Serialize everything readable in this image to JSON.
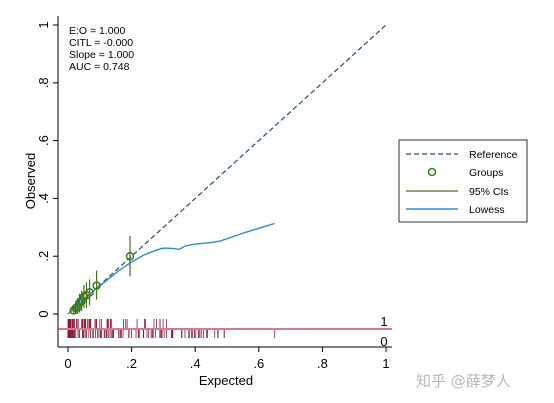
{
  "chart_data": {
    "type": "scatter",
    "title": "",
    "xlabel": "Expected",
    "ylabel": "Observed",
    "xlim": [
      0,
      1
    ],
    "ylim": [
      0,
      1
    ],
    "x_ticks": [
      {
        "value": 0,
        "label": "0"
      },
      {
        "value": 0.2,
        "label": ".2"
      },
      {
        "value": 0.4,
        "label": ".4"
      },
      {
        "value": 0.6,
        "label": ".6"
      },
      {
        "value": 0.8,
        "label": ".8"
      },
      {
        "value": 1,
        "label": "1"
      }
    ],
    "y_ticks": [
      {
        "value": 0,
        "label": "0"
      },
      {
        "value": 0.2,
        "label": ".2"
      },
      {
        "value": 0.4,
        "label": ".4"
      },
      {
        "value": 0.6,
        "label": ".6"
      },
      {
        "value": 0.8,
        "label": ".8"
      },
      {
        "value": 1,
        "label": "1"
      }
    ],
    "grid": false,
    "annotations": [
      "E:O = 1.000",
      "CITL = -0.000",
      "Slope = 1.000",
      "AUC = 0.748"
    ],
    "legend": {
      "position": "right",
      "entries": [
        "Reference",
        "Groups",
        "95% CIs",
        "Lowess"
      ]
    },
    "reference_line": {
      "x": [
        0,
        1
      ],
      "y": [
        0,
        1
      ]
    },
    "groups": [
      {
        "x": 0.018,
        "y": 0.012,
        "ci": [
          0.0,
          0.03
        ]
      },
      {
        "x": 0.024,
        "y": 0.02,
        "ci": [
          0.0,
          0.045
        ]
      },
      {
        "x": 0.03,
        "y": 0.024,
        "ci": [
          0.0,
          0.055
        ]
      },
      {
        "x": 0.036,
        "y": 0.038,
        "ci": [
          0.005,
          0.07
        ]
      },
      {
        "x": 0.043,
        "y": 0.045,
        "ci": [
          0.01,
          0.08
        ]
      },
      {
        "x": 0.05,
        "y": 0.06,
        "ci": [
          0.02,
          0.1
        ]
      },
      {
        "x": 0.058,
        "y": 0.065,
        "ci": [
          0.02,
          0.11
        ]
      },
      {
        "x": 0.068,
        "y": 0.075,
        "ci": [
          0.03,
          0.12
        ]
      },
      {
        "x": 0.09,
        "y": 0.098,
        "ci": [
          0.05,
          0.15
        ]
      },
      {
        "x": 0.195,
        "y": 0.2,
        "ci": [
          0.13,
          0.27
        ]
      }
    ],
    "lowess": {
      "x": [
        0.0,
        0.04,
        0.08,
        0.12,
        0.16,
        0.2,
        0.24,
        0.28,
        0.3,
        0.33,
        0.35,
        0.37,
        0.4,
        0.45,
        0.48,
        0.52,
        0.56,
        0.6,
        0.65
      ],
      "y": [
        0.0,
        0.04,
        0.08,
        0.115,
        0.15,
        0.18,
        0.205,
        0.222,
        0.228,
        0.227,
        0.224,
        0.236,
        0.242,
        0.247,
        0.253,
        0.268,
        0.283,
        0.297,
        0.313
      ]
    },
    "event_rug_labels": [
      "1",
      "0"
    ]
  },
  "colors": {
    "reference": "#1f4e79",
    "groups": "#3a7a1a",
    "ci": "#4a6e1a",
    "lowess": "#2b8fd8",
    "rug": "#8b1a3a",
    "separator": "#c0294b"
  },
  "watermark": "知乎 @薛梦人"
}
